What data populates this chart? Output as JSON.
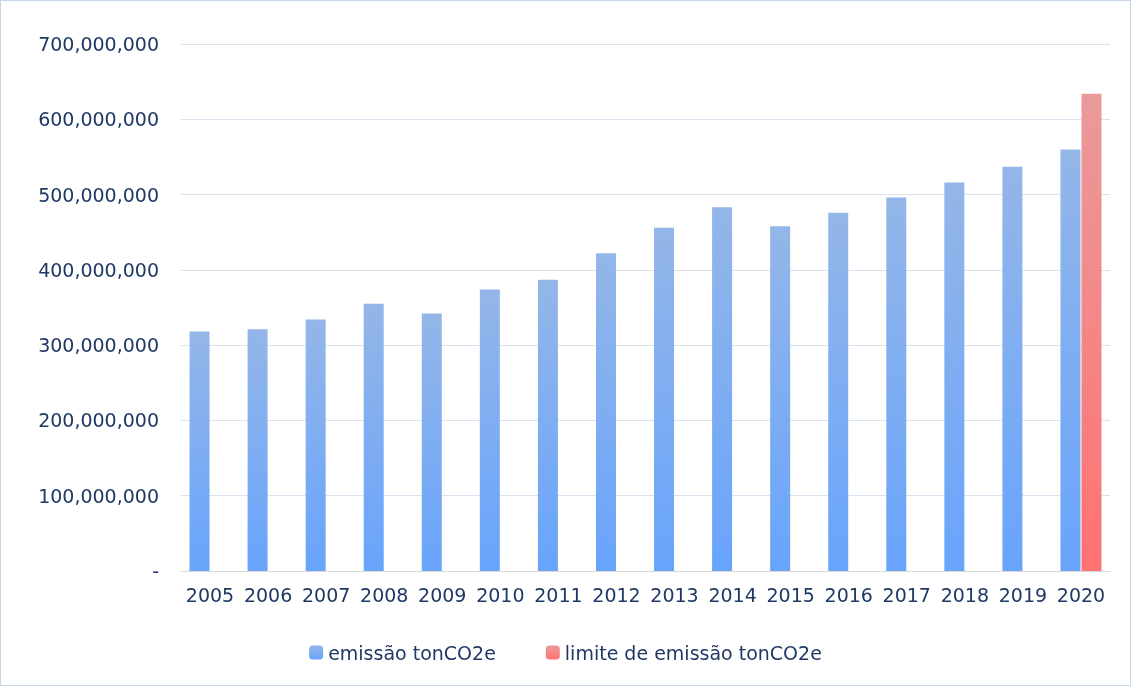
{
  "chart_data": {
    "type": "bar",
    "categories": [
      "2005",
      "2006",
      "2007",
      "2008",
      "2009",
      "2010",
      "2011",
      "2012",
      "2013",
      "2014",
      "2015",
      "2016",
      "2017",
      "2018",
      "2019",
      "2020"
    ],
    "series": [
      {
        "name": "emissão tonCO2e",
        "color": "#5b8fdc",
        "values": [
          318000000,
          321000000,
          334000000,
          355000000,
          342000000,
          374000000,
          387000000,
          422000000,
          456000000,
          483000000,
          458000000,
          476000000,
          496000000,
          516000000,
          537000000,
          560000000
        ]
      },
      {
        "name": "limite de emissão tonCO2e",
        "color": "#e06464",
        "values": [
          null,
          null,
          null,
          null,
          null,
          null,
          null,
          null,
          null,
          null,
          null,
          null,
          null,
          null,
          null,
          634000000
        ]
      }
    ],
    "ylim": [
      0,
      700000000
    ],
    "yticks": [
      {
        "value": 0,
        "label": "-"
      },
      {
        "value": 100000000,
        "label": "100,000,000"
      },
      {
        "value": 200000000,
        "label": "200,000,000"
      },
      {
        "value": 300000000,
        "label": "300,000,000"
      },
      {
        "value": 400000000,
        "label": "400,000,000"
      },
      {
        "value": 500000000,
        "label": "500,000,000"
      },
      {
        "value": 600000000,
        "label": "600,000,000"
      },
      {
        "value": 700000000,
        "label": "700,000,000"
      }
    ],
    "grid": "y",
    "legend": "bottom"
  }
}
